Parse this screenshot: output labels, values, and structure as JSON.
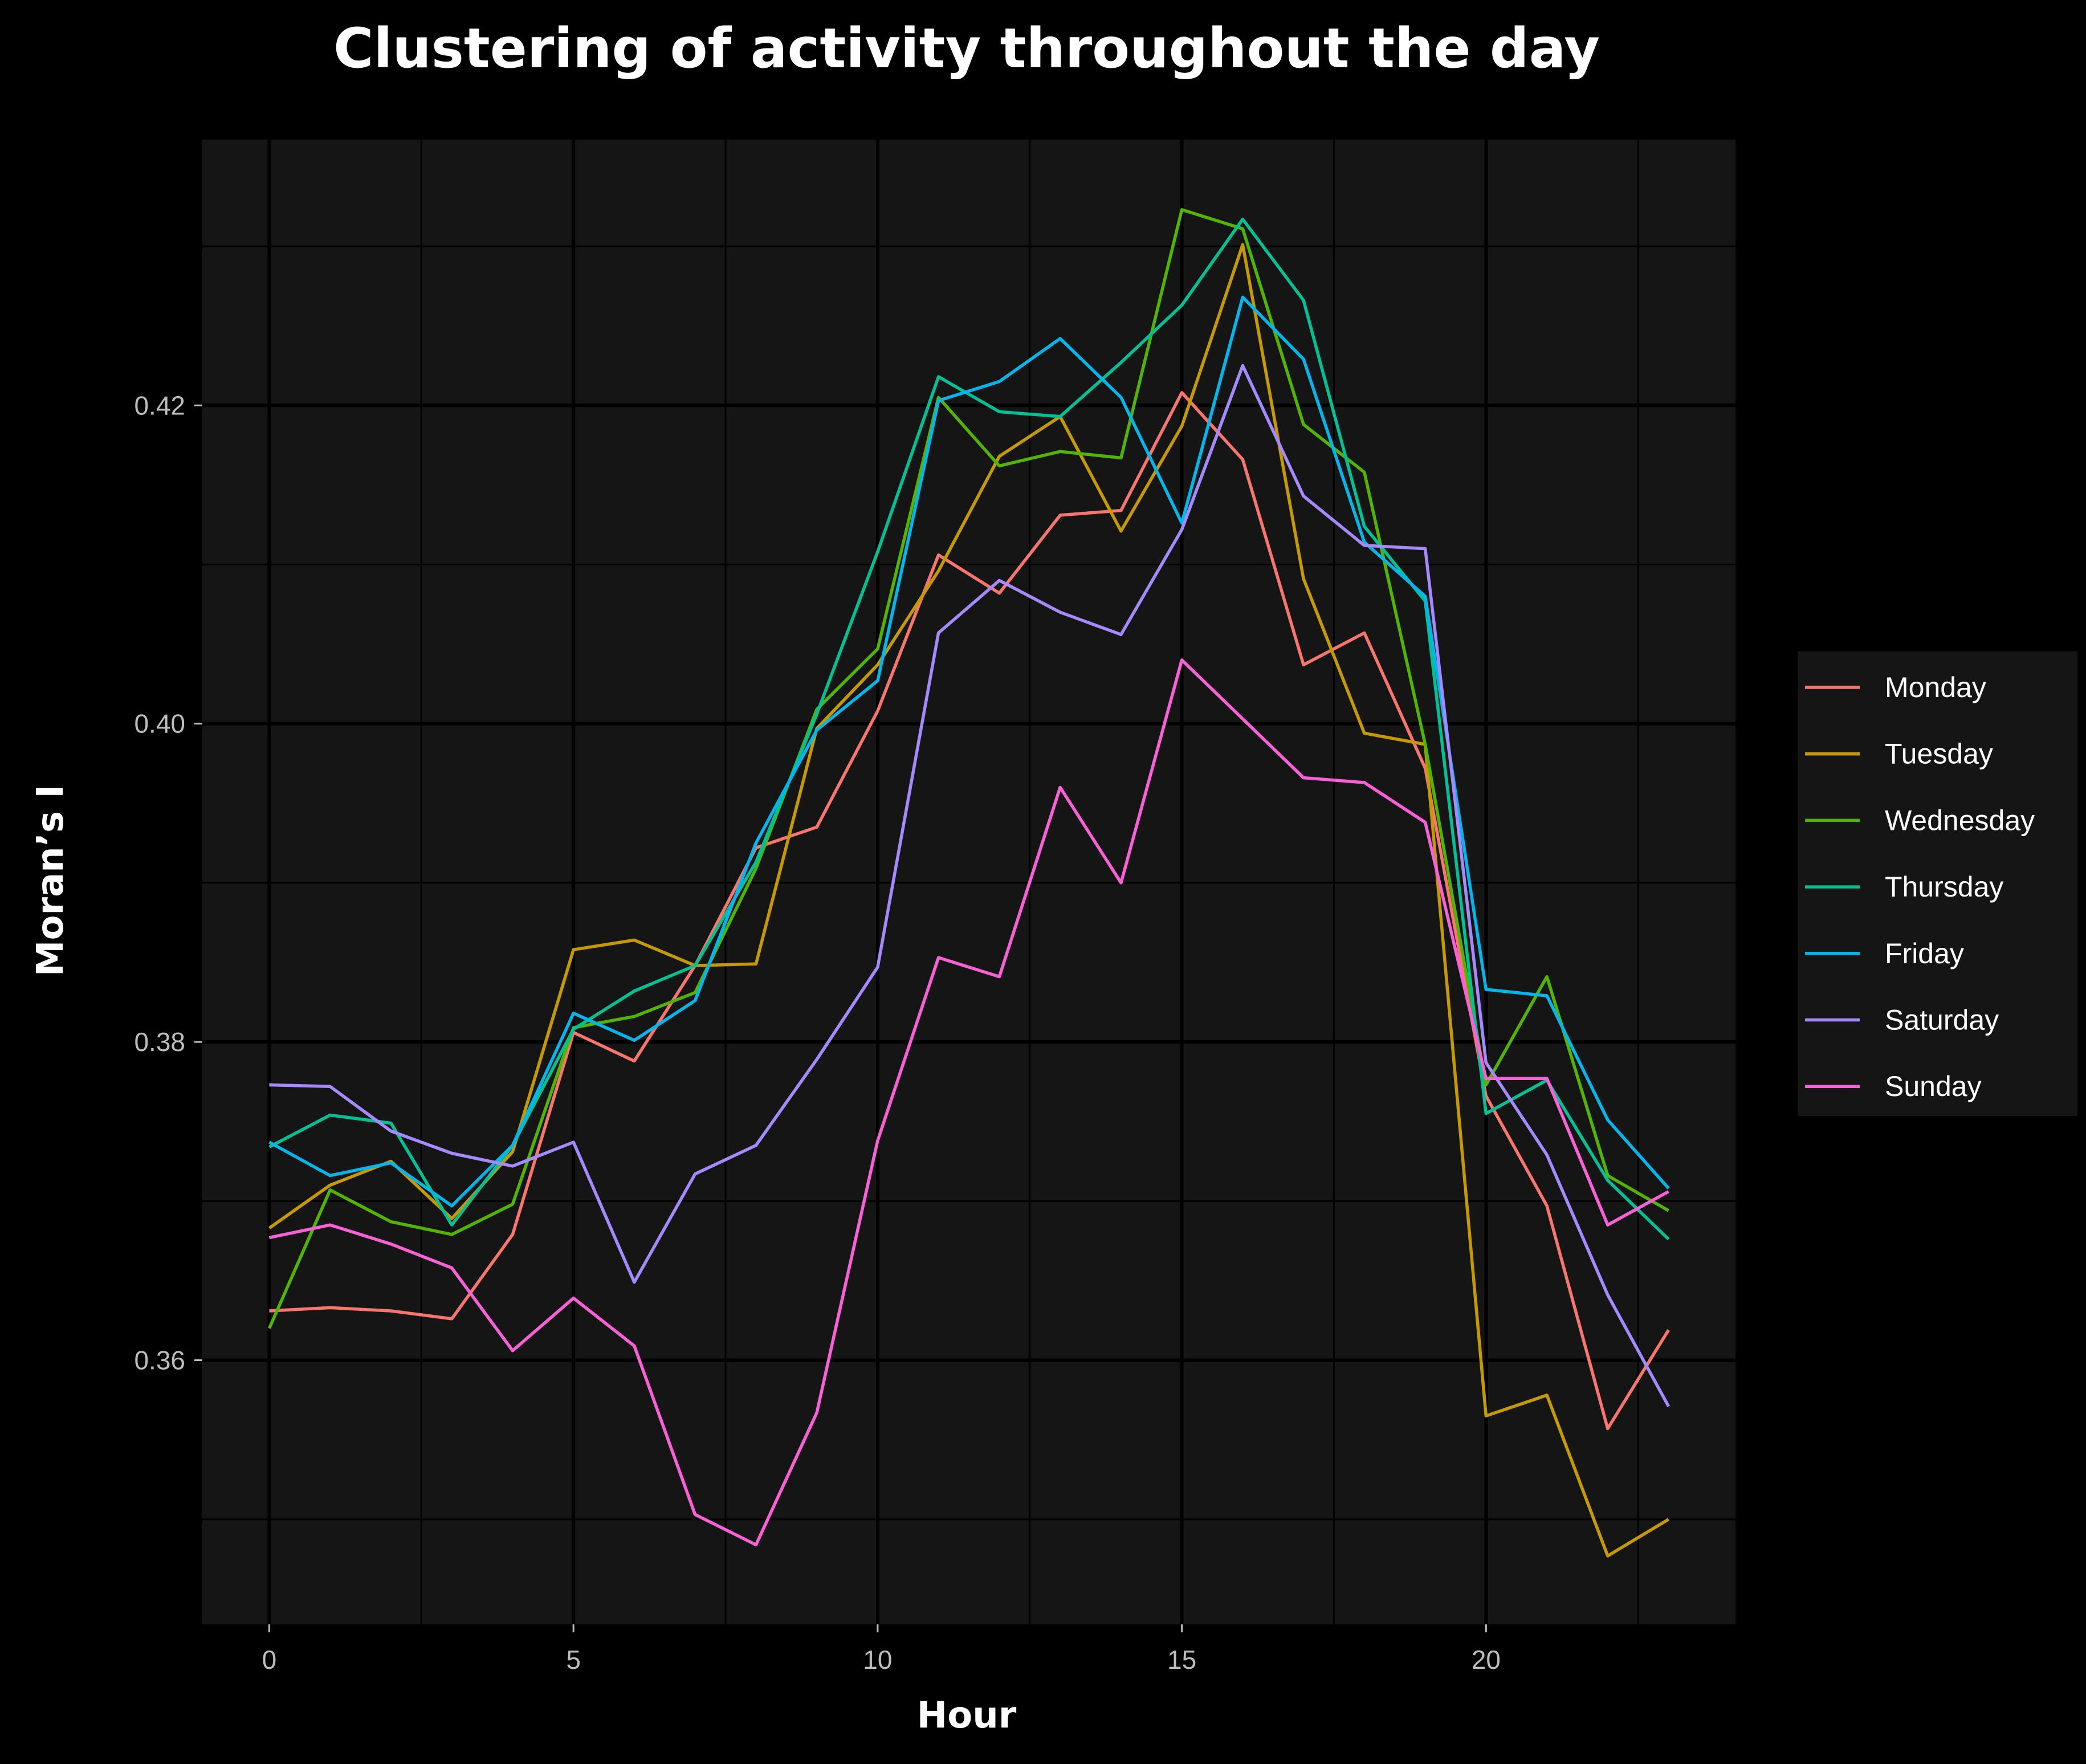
{
  "chart_data": {
    "type": "line",
    "title": "Clustering of activity throughout the day",
    "xlabel": "Hour",
    "ylabel": "Moran’s I",
    "xlim": [
      -1.1,
      24.1
    ],
    "ylim": [
      0.3434,
      0.4367
    ],
    "x_ticks": [
      0,
      5,
      10,
      15,
      20
    ],
    "x_tick_labels": [
      "0",
      "5",
      "10",
      "15",
      "20"
    ],
    "y_ticks": [
      0.36,
      0.38,
      0.4,
      0.42
    ],
    "y_tick_labels": [
      "0.36",
      "0.38",
      "0.40",
      "0.42"
    ],
    "grid": true,
    "legend_position": "right",
    "x": [
      0,
      1,
      2,
      3,
      4,
      5,
      6,
      7,
      8,
      9,
      10,
      11,
      12,
      13,
      14,
      15,
      16,
      17,
      18,
      19,
      20,
      21,
      22,
      23
    ],
    "series": [
      {
        "name": "Monday",
        "color": "#F8766D",
        "values": [
          0.3631,
          0.3633,
          0.3631,
          0.3626,
          0.3679,
          0.3806,
          0.3788,
          0.3848,
          0.3922,
          0.3935,
          0.4008,
          0.4106,
          0.4082,
          0.4131,
          0.4134,
          0.4208,
          0.4166,
          0.4037,
          0.4057,
          0.3972,
          0.3766,
          0.3697,
          0.3557,
          0.3619
        ]
      },
      {
        "name": "Tuesday",
        "color": "#C49A00",
        "values": [
          0.3683,
          0.371,
          0.3725,
          0.3689,
          0.3731,
          0.3858,
          0.3864,
          0.3848,
          0.3849,
          0.3997,
          0.4037,
          0.4096,
          0.4168,
          0.4193,
          0.4121,
          0.4187,
          0.4301,
          0.4091,
          0.3994,
          0.3987,
          0.3565,
          0.3578,
          0.3477,
          0.35
        ]
      },
      {
        "name": "Wednesday",
        "color": "#53B400",
        "values": [
          0.362,
          0.3707,
          0.3687,
          0.3679,
          0.3698,
          0.3809,
          0.3816,
          0.3831,
          0.3909,
          0.4009,
          0.4047,
          0.4205,
          0.4162,
          0.4171,
          0.4167,
          0.4323,
          0.4311,
          0.4188,
          0.4158,
          0.3987,
          0.3773,
          0.3841,
          0.3716,
          0.3694
        ]
      },
      {
        "name": "Thursday",
        "color": "#00C094",
        "values": [
          0.3734,
          0.3754,
          0.3749,
          0.3685,
          0.3735,
          0.3808,
          0.3832,
          0.3848,
          0.3913,
          0.4006,
          0.4108,
          0.4218,
          0.4196,
          0.4193,
          0.4227,
          0.4263,
          0.4317,
          0.4266,
          0.4124,
          0.4077,
          0.3755,
          0.3776,
          0.3713,
          0.3676
        ]
      },
      {
        "name": "Friday",
        "color": "#00B6EB",
        "values": [
          0.3737,
          0.3716,
          0.3724,
          0.3697,
          0.3735,
          0.3818,
          0.3801,
          0.3826,
          0.3925,
          0.3996,
          0.4027,
          0.4203,
          0.4215,
          0.4242,
          0.4205,
          0.4126,
          0.4268,
          0.4229,
          0.4114,
          0.408,
          0.3833,
          0.3829,
          0.3751,
          0.3708
        ]
      },
      {
        "name": "Saturday",
        "color": "#A58AFF",
        "values": [
          0.3773,
          0.3772,
          0.3744,
          0.373,
          0.3722,
          0.3737,
          0.3649,
          0.3717,
          0.3735,
          0.3789,
          0.3847,
          0.4057,
          0.409,
          0.407,
          0.4056,
          0.4122,
          0.4225,
          0.4143,
          0.4112,
          0.411,
          0.3787,
          0.3729,
          0.3641,
          0.3571
        ]
      },
      {
        "name": "Sunday",
        "color": "#FB61D7",
        "values": [
          0.3677,
          0.3685,
          0.3673,
          0.3658,
          0.3606,
          0.3639,
          0.3609,
          0.3503,
          0.3484,
          0.3567,
          0.3738,
          0.3853,
          0.3841,
          0.396,
          0.39,
          0.404,
          0.4003,
          0.3966,
          0.3963,
          0.3938,
          0.3777,
          0.3777,
          0.3685,
          0.3706
        ]
      }
    ]
  }
}
